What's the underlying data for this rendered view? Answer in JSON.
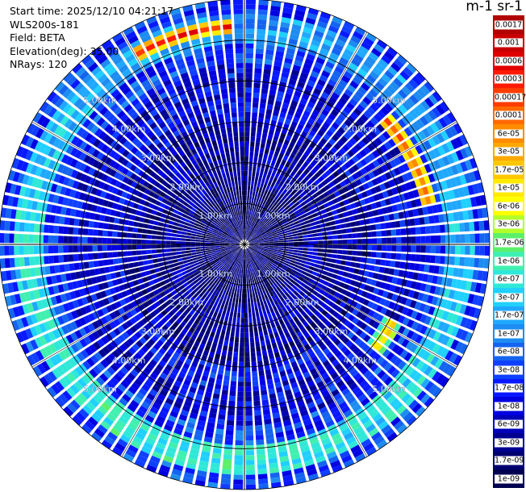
{
  "header": {
    "start_time": "Start time: 2025/12/10 04:21:17",
    "instrument": "WLS200s-181",
    "field": "Field: BETA",
    "elevation": "Elevation(deg): 35.00",
    "nrays": "NRays: 120"
  },
  "colorbar": {
    "title": "m-1 sr-1",
    "labels": [
      "0.0017",
      "0.001",
      "0.0006",
      "0.0003",
      "0.00017",
      "0.0001",
      "6e-05",
      "3e-05",
      "1.7e-05",
      "1e-05",
      "6e-06",
      "3e-06",
      "1.7e-06",
      "1e-06",
      "6e-07",
      "3e-07",
      "1.7e-07",
      "1e-07",
      "6e-08",
      "3e-08",
      "1.7e-08",
      "1e-08",
      "6e-09",
      "3e-09",
      "1.7e-09",
      "1e-09"
    ],
    "colors": [
      "#b00000",
      "#c80000",
      "#e00000",
      "#ff1a00",
      "#ff3d00",
      "#ff6a00",
      "#ff8c00",
      "#ffa800",
      "#ffc800",
      "#ffea00",
      "#ffff00",
      "#b4ff2a",
      "#5cf06a",
      "#40f0b0",
      "#30e8d8",
      "#20d0ff",
      "#20a8ff",
      "#1e8cf0",
      "#1464f0",
      "#1040ff",
      "#0818ff",
      "#0000e0",
      "#0000b8",
      "#000090",
      "#000070",
      "#000050"
    ]
  },
  "range_rings": {
    "labels": [
      "1.00km",
      "2.00km",
      "3.00km",
      "4.00km",
      "5.00km"
    ]
  },
  "chart_data": {
    "type": "heatmap",
    "projection": "ppi",
    "field": "BETA",
    "units": "m-1 sr-1",
    "n_rays": 120,
    "elevation_deg": 35.0,
    "range_km": [
      0,
      6
    ],
    "rings_km": [
      1,
      2,
      3,
      4,
      5
    ],
    "color_scale": "log",
    "value_range": [
      1e-09,
      0.0017
    ],
    "features": [
      {
        "description": "aerosol ring",
        "range_km_from": 4.9,
        "range_km_to": 5.6,
        "azimuth_deg_from": 0,
        "azimuth_deg_to": 360,
        "typical_value": 3e-07
      },
      {
        "description": "strong return arc",
        "range_km_from": 5.2,
        "range_km_to": 5.5,
        "azimuth_deg_from": 330,
        "azimuth_deg_to": 358,
        "typical_value": 0.0003
      },
      {
        "description": "strong return arc",
        "range_km_from": 4.4,
        "range_km_to": 4.8,
        "azimuth_deg_from": 48,
        "azimuth_deg_to": 78,
        "typical_value": 0.0001
      },
      {
        "description": "strong return arc",
        "range_km_from": 3.9,
        "range_km_to": 4.3,
        "azimuth_deg_from": 118,
        "azimuth_deg_to": 128,
        "typical_value": 3e-05
      }
    ]
  }
}
